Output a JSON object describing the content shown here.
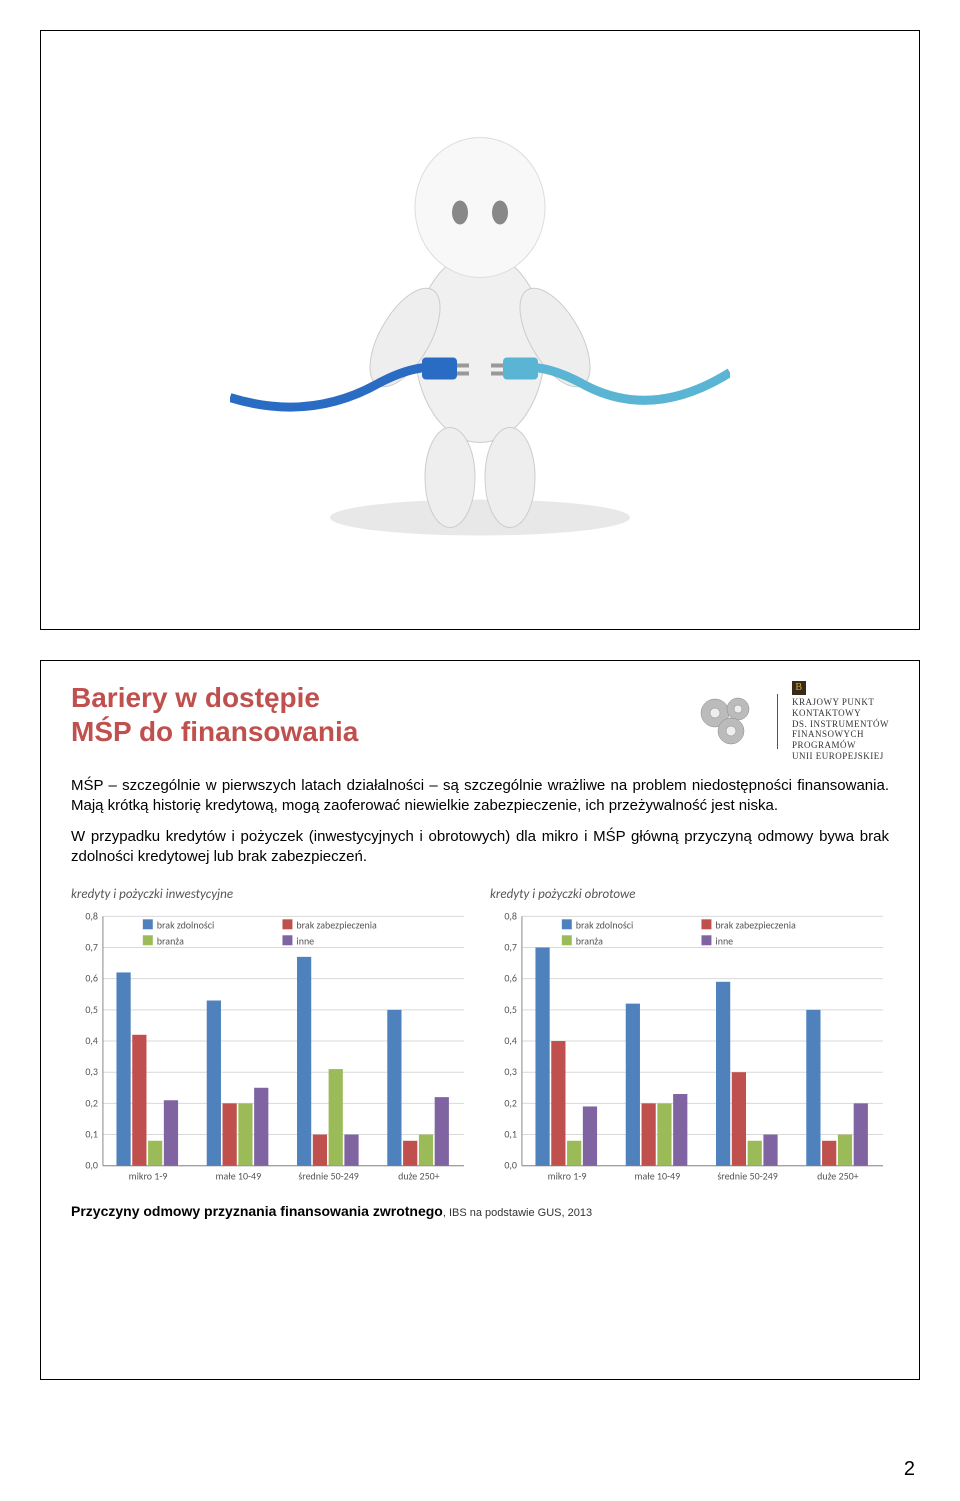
{
  "page_number": "2",
  "slide1": {
    "figure_label": "3D figure with plugs"
  },
  "slide2": {
    "title_line1": "Bariery w dostępie",
    "title_line2": "MŚP do finansowania",
    "logo_text_l1": "Krajowy Punkt",
    "logo_text_l2": "Kontaktowy",
    "logo_text_l3": "ds. Instrumentów",
    "logo_text_l4": "Finansowych",
    "logo_text_l5": "Programów",
    "logo_text_l6": "Unii Europejskiej",
    "body_p1": "MŚP – szczególnie w pierwszych latach działalności – są szczególnie wrażliwe na problem niedostępności finansowania. Mają krótką historię kredytową, mogą zaoferować niewielkie zabezpieczenie, ich przeżywalność jest niska.",
    "body_p2": "W przypadku kredytów i pożyczek (inwestycyjnych i obrotowych) dla mikro i MŚP główną przyczyną odmowy bywa brak zdolności kredytowej lub brak zabezpieczeń.",
    "chart1": {
      "title": "kredyty i pożyczki inwestycyjne",
      "type": "bar",
      "categories": [
        "mikro 1-9",
        "małe 10-49",
        "średnie 50-249",
        "duże 250+"
      ],
      "series": [
        {
          "name": "brak zdolności",
          "color": "#4f81bd",
          "values": [
            0.62,
            0.53,
            0.67,
            0.5
          ]
        },
        {
          "name": "brak zabezpieczenia",
          "color": "#c0504d",
          "values": [
            0.42,
            0.2,
            0.1,
            0.08
          ]
        },
        {
          "name": "branża",
          "color": "#9bbb59",
          "values": [
            0.08,
            0.2,
            0.31,
            0.1
          ]
        },
        {
          "name": "inne",
          "color": "#8064a2",
          "values": [
            0.21,
            0.25,
            0.1,
            0.22
          ]
        }
      ],
      "ylim": [
        0,
        0.8
      ],
      "ytick_step": 0.1,
      "grid_color": "#d9d9d9",
      "axis_color": "#888888",
      "label_fontsize": 10,
      "bar_group_width": 0.7
    },
    "chart2": {
      "title": "kredyty i pożyczki obrotowe",
      "type": "bar",
      "categories": [
        "mikro 1-9",
        "małe 10-49",
        "średnie 50-249",
        "duże 250+"
      ],
      "series": [
        {
          "name": "brak zdolności",
          "color": "#4f81bd",
          "values": [
            0.7,
            0.52,
            0.59,
            0.5
          ]
        },
        {
          "name": "brak zabezpieczenia",
          "color": "#c0504d",
          "values": [
            0.4,
            0.2,
            0.3,
            0.08
          ]
        },
        {
          "name": "branża",
          "color": "#9bbb59",
          "values": [
            0.08,
            0.2,
            0.08,
            0.1
          ]
        },
        {
          "name": "inne",
          "color": "#8064a2",
          "values": [
            0.19,
            0.23,
            0.1,
            0.2
          ]
        }
      ],
      "ylim": [
        0,
        0.8
      ],
      "ytick_step": 0.1,
      "grid_color": "#d9d9d9",
      "axis_color": "#888888",
      "label_fontsize": 10,
      "bar_group_width": 0.7
    },
    "source_bold": "Przyczyny odmowy przyznania finansowania zwrotnego",
    "source_small": ", IBS na podstawie GUS, 2013"
  }
}
